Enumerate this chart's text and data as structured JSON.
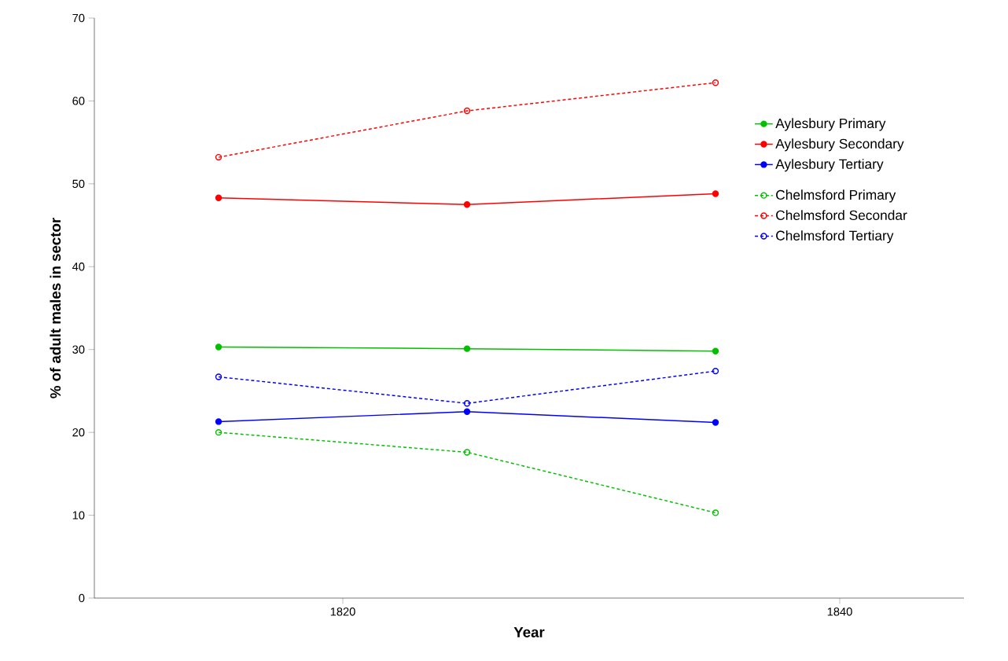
{
  "chart_data": {
    "type": "line",
    "xlabel": "Year",
    "ylabel": "% of adult males in sector",
    "x": [
      1815,
      1825,
      1835
    ],
    "xlim": [
      1810,
      1845
    ],
    "xticks": [
      1820,
      1840
    ],
    "ylim": [
      0,
      70
    ],
    "yticks": [
      0,
      10,
      20,
      30,
      40,
      50,
      60,
      70
    ],
    "grid": false,
    "legend": "right",
    "marker": "circle",
    "series": [
      {
        "name": "Aylesbury Primary",
        "color": "#00c000",
        "line_style": "solid",
        "values": [
          30.3,
          30.1,
          29.8
        ]
      },
      {
        "name": "Aylesbury Secondary",
        "color": "#ff0000",
        "line_style": "solid",
        "values": [
          48.3,
          47.5,
          48.8
        ]
      },
      {
        "name": "Aylesbury Tertiary",
        "color": "#0000ff",
        "line_style": "solid",
        "values": [
          21.3,
          22.5,
          21.2
        ]
      },
      {
        "name": "Chelmsford Primary",
        "color": "#00c000",
        "line_style": "dashed",
        "values": [
          20.0,
          17.6,
          10.3
        ]
      },
      {
        "name": "Chelmsford Secondar",
        "color": "#ff0000",
        "line_style": "dashed",
        "values": [
          53.2,
          58.8,
          62.2
        ]
      },
      {
        "name": "Chelmsford Tertiary",
        "color": "#0000ff",
        "line_style": "dashed",
        "values": [
          26.7,
          23.5,
          27.4
        ]
      }
    ]
  }
}
